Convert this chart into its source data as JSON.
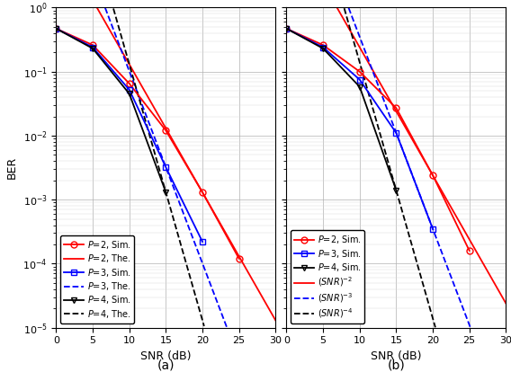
{
  "colors": {
    "red": "#ff0000",
    "blue": "#0000ff",
    "black": "#000000"
  },
  "xlabel": "SNR (dB)",
  "ylabel": "BER",
  "xlim": [
    0,
    30
  ],
  "ylim": [
    1e-05,
    1.0
  ],
  "xticks": [
    0,
    5,
    10,
    15,
    20,
    25,
    30
  ],
  "label_a": "(a)",
  "label_b": "(b)",
  "a_P2_sim_snr": [
    0,
    5,
    10,
    15,
    20,
    25
  ],
  "a_P2_sim_ber": [
    0.47,
    0.26,
    0.065,
    0.012,
    0.0013,
    0.00012
  ],
  "a_P3_sim_snr": [
    0,
    5,
    10,
    15,
    20
  ],
  "a_P3_sim_ber": [
    0.47,
    0.24,
    0.052,
    0.0032,
    0.00022
  ],
  "a_P4_sim_snr": [
    0,
    5,
    10,
    15
  ],
  "a_P4_sim_ber": [
    0.47,
    0.23,
    0.045,
    0.0013
  ],
  "b_P2_sim_snr": [
    0,
    5,
    10,
    15,
    20,
    25
  ],
  "b_P2_sim_ber": [
    0.47,
    0.26,
    0.1,
    0.027,
    0.0024,
    0.00016
  ],
  "b_P3_sim_snr": [
    0,
    5,
    10,
    15,
    20
  ],
  "b_P3_sim_ber": [
    0.47,
    0.24,
    0.075,
    0.011,
    0.00035
  ],
  "b_P4_sim_snr": [
    0,
    5,
    10,
    15
  ],
  "b_P4_sim_ber": [
    0.47,
    0.23,
    0.058,
    0.0014
  ]
}
